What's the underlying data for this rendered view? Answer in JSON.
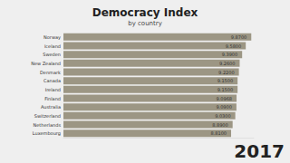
{
  "chart_data": {
    "type": "bar",
    "title": "Democracy Index",
    "subtitle": "by country",
    "orientation": "horizontal",
    "categories": [
      "Norway",
      "Iceland",
      "Sweden",
      "New Zealand",
      "Denmark",
      "Canada",
      "Ireland",
      "Finland",
      "Australia",
      "Switzerland",
      "Netherlands",
      "Luxembourg"
    ],
    "values": [
      9.87,
      9.58,
      9.39,
      9.26,
      9.22,
      9.15,
      9.15,
      9.0968,
      9.09,
      9.03,
      8.89,
      8.81
    ],
    "value_labels": [
      "9.8700",
      "9.5800",
      "9.3900",
      "9.2600",
      "9.2200",
      "9.1500",
      "9.1500",
      "9.0968",
      "9.0900",
      "9.0300",
      "8.8900",
      "8.8100"
    ],
    "data_labels": true,
    "color": "#9c9684",
    "xlim": [
      0,
      10
    ],
    "tick_labels": false,
    "grid": false,
    "annotations": [
      "2017"
    ]
  }
}
